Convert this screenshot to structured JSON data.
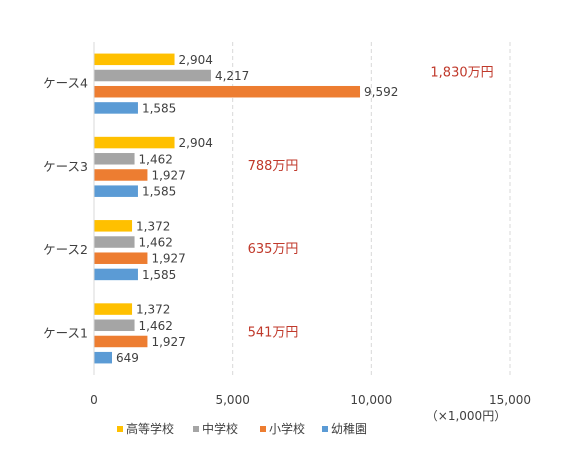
{
  "chart_data": {
    "type": "bar",
    "orientation": "horizontal",
    "categories": [
      "ケース4",
      "ケース3",
      "ケース2",
      "ケース1"
    ],
    "series": [
      {
        "name": "高等学校",
        "color": "#FFC000",
        "values": [
          2904,
          2904,
          1372,
          1372
        ],
        "labels": [
          "2,904",
          "2,904",
          "1,372",
          "1,372"
        ]
      },
      {
        "name": "中学校",
        "color": "#A5A5A5",
        "values": [
          4217,
          1462,
          1462,
          1462
        ],
        "labels": [
          "4,217",
          "1,462",
          "1,462",
          "1,462"
        ]
      },
      {
        "name": "小学校",
        "color": "#ED7D31",
        "values": [
          9592,
          1927,
          1927,
          1927
        ],
        "labels": [
          "9,592",
          "1,927",
          "1,927",
          "1,927"
        ]
      },
      {
        "name": "幼稚園",
        "color": "#5B9BD5",
        "values": [
          1585,
          1585,
          1585,
          649
        ],
        "labels": [
          "1,585",
          "1,585",
          "1,585",
          "649"
        ]
      }
    ],
    "totals": [
      "1,830万円",
      "788万円",
      "635万円",
      "541万円"
    ],
    "total_color": "#C0392B",
    "xlim": [
      0,
      15000
    ],
    "xticks": [
      0,
      5000,
      10000,
      15000
    ],
    "xtick_labels": [
      "0",
      "5,000",
      "10,000",
      "15,000"
    ],
    "unit_label": "（×1,000円）",
    "grid": "vertical-dashed",
    "legend": "bottom"
  }
}
